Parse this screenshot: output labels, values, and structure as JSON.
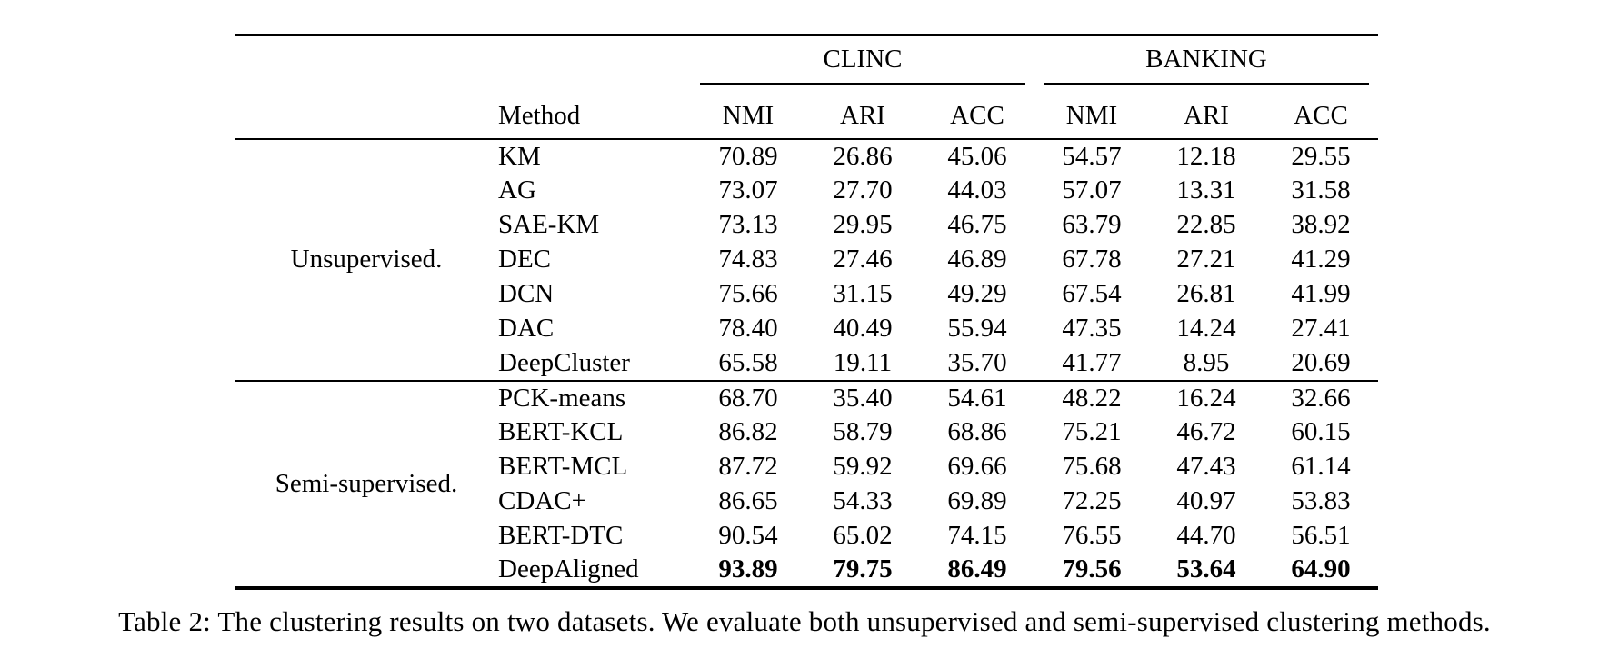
{
  "table": {
    "caption": "Table 2: The clustering results on two datasets. We evaluate both unsupervised and semi-supervised clustering methods.",
    "method_header": "Method",
    "groups": [
      {
        "label": "CLINC",
        "cols": [
          "NMI",
          "ARI",
          "ACC"
        ]
      },
      {
        "label": "BANKING",
        "cols": [
          "NMI",
          "ARI",
          "ACC"
        ]
      }
    ],
    "sections": [
      {
        "label": "Unsupervised.",
        "rows": [
          {
            "method": "KM",
            "values": [
              70.89,
              26.86,
              45.06,
              54.57,
              12.18,
              29.55
            ],
            "bold": false
          },
          {
            "method": "AG",
            "values": [
              73.07,
              27.7,
              44.03,
              57.07,
              13.31,
              31.58
            ],
            "bold": false
          },
          {
            "method": "SAE-KM",
            "values": [
              73.13,
              29.95,
              46.75,
              63.79,
              22.85,
              38.92
            ],
            "bold": false
          },
          {
            "method": "DEC",
            "values": [
              74.83,
              27.46,
              46.89,
              67.78,
              27.21,
              41.29
            ],
            "bold": false
          },
          {
            "method": "DCN",
            "values": [
              75.66,
              31.15,
              49.29,
              67.54,
              26.81,
              41.99
            ],
            "bold": false
          },
          {
            "method": "DAC",
            "values": [
              78.4,
              40.49,
              55.94,
              47.35,
              14.24,
              27.41
            ],
            "bold": false
          },
          {
            "method": "DeepCluster",
            "values": [
              65.58,
              19.11,
              35.7,
              41.77,
              8.95,
              20.69
            ],
            "bold": false
          }
        ]
      },
      {
        "label": "Semi-supervised.",
        "rows": [
          {
            "method": "PCK-means",
            "values": [
              68.7,
              35.4,
              54.61,
              48.22,
              16.24,
              32.66
            ],
            "bold": false
          },
          {
            "method": "BERT-KCL",
            "values": [
              86.82,
              58.79,
              68.86,
              75.21,
              46.72,
              60.15
            ],
            "bold": false
          },
          {
            "method": "BERT-MCL",
            "values": [
              87.72,
              59.92,
              69.66,
              75.68,
              47.43,
              61.14
            ],
            "bold": false
          },
          {
            "method": "CDAC+",
            "values": [
              86.65,
              54.33,
              69.89,
              72.25,
              40.97,
              53.83
            ],
            "bold": false
          },
          {
            "method": "BERT-DTC",
            "values": [
              90.54,
              65.02,
              74.15,
              76.55,
              44.7,
              56.51
            ],
            "bold": false
          },
          {
            "method": "DeepAligned",
            "values": [
              93.89,
              79.75,
              86.49,
              79.56,
              53.64,
              64.9
            ],
            "bold": true
          }
        ]
      }
    ]
  }
}
